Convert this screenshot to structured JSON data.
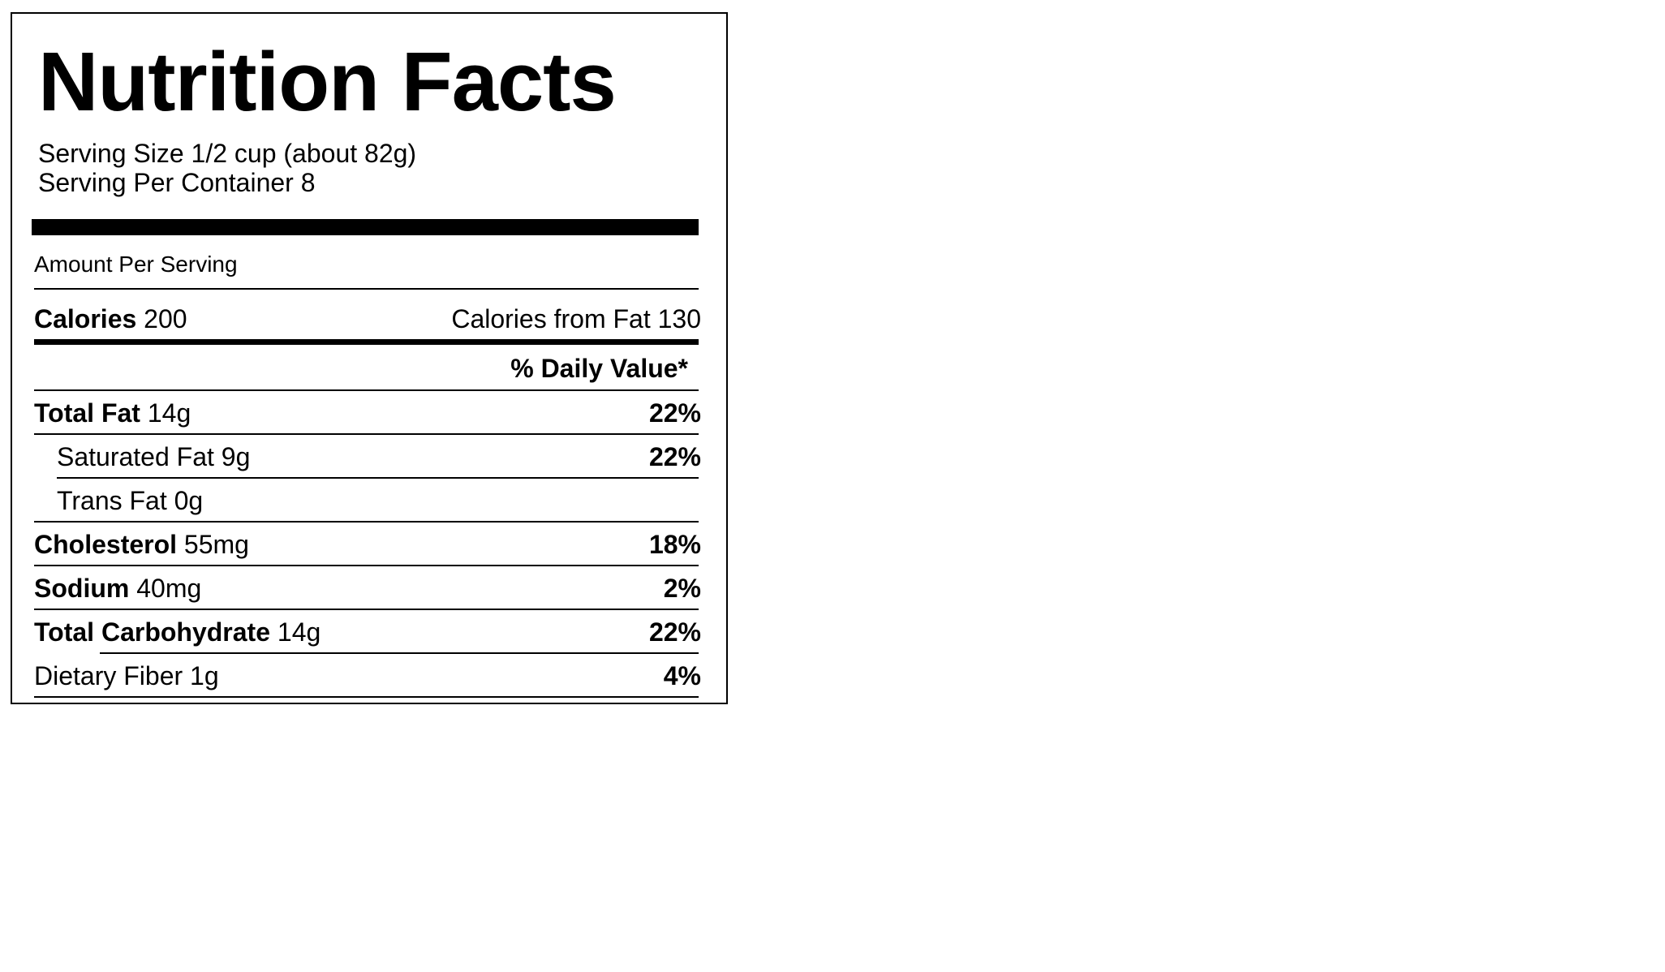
{
  "label": {
    "title": "Nutrition Facts",
    "serving_size": "Serving Size 1/2 cup (about 82g)",
    "servings_per_container": "Serving Per Container 8",
    "amount_per_serving": "Amount Per Serving",
    "calories_label": "Calories",
    "calories_value": "200",
    "calories_from_fat": "Calories from Fat 130",
    "daily_value_header": "% Daily Value*",
    "nutrients": [
      {
        "name": "Total Fat",
        "amount": "14g",
        "dv": "22%"
      },
      {
        "name": "Saturated Fat",
        "amount": "9g",
        "dv": "22%"
      },
      {
        "name": "Trans Fat",
        "amount": "0g",
        "dv": ""
      },
      {
        "name": "Cholesterol",
        "amount": "55mg",
        "dv": "18%"
      },
      {
        "name": "Sodium",
        "amount": "40mg",
        "dv": "2%"
      },
      {
        "name": "Total Carbohydrate",
        "amount": "14g",
        "dv": "22%"
      },
      {
        "name": "Dietary Fiber",
        "amount": "1g",
        "dv": "4%"
      }
    ]
  }
}
